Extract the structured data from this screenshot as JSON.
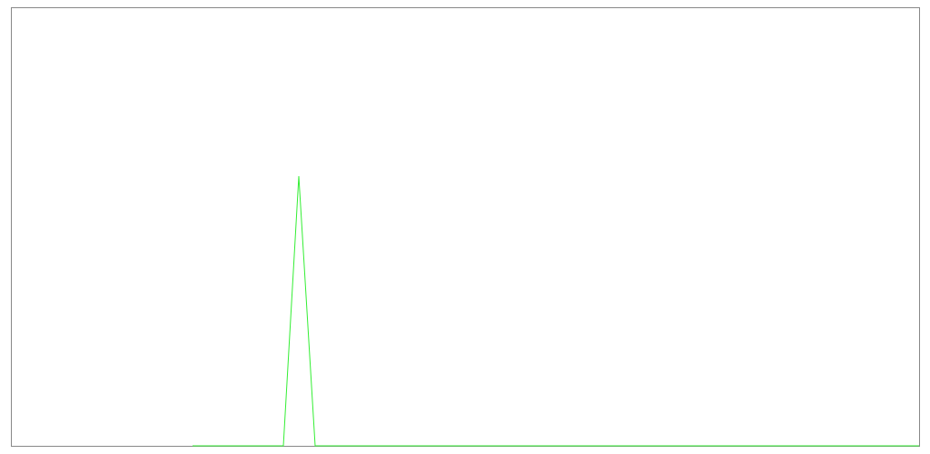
{
  "chart_data": {
    "type": "line",
    "title": "",
    "xlabel": "",
    "ylabel": "",
    "xlim": [
      0,
      1
    ],
    "ylim": [
      0,
      1
    ],
    "grid": false,
    "legend": "none",
    "series": [
      {
        "color": "#33ee33",
        "x": [
          0.2,
          0.3,
          0.317,
          0.335,
          1.0
        ],
        "y": [
          0.0,
          0.0,
          0.615,
          0.0,
          0.0
        ]
      }
    ]
  },
  "colors": {
    "frame": "#888888",
    "background": "#ffffff"
  }
}
